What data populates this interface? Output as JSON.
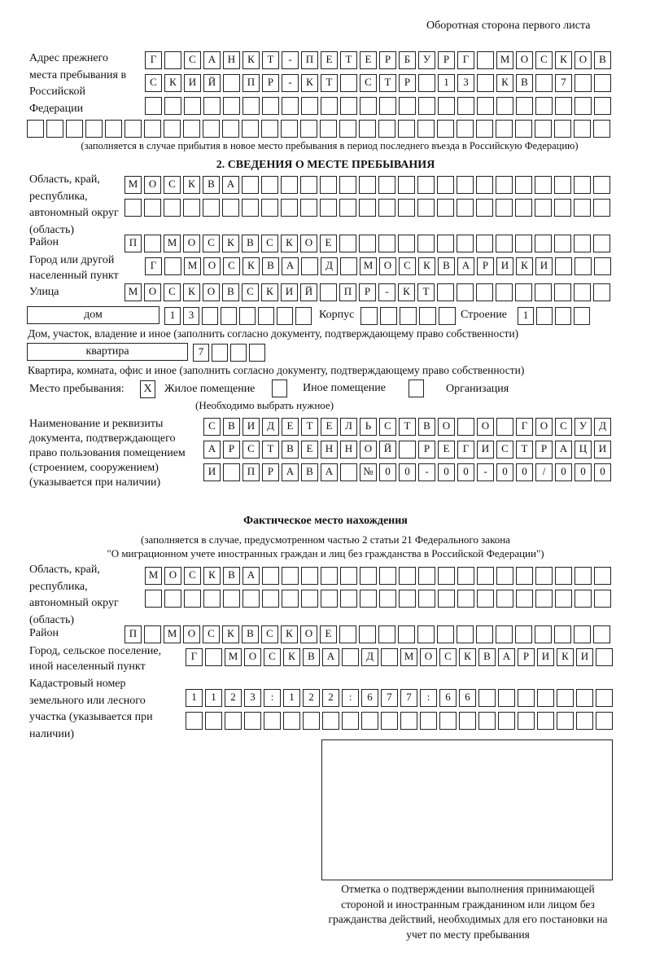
{
  "header": "Оборотная сторона первого листа",
  "prev_address": {
    "label": "Адрес прежнего места пребывания в Российской Федерации",
    "rows": [
      [
        "Г",
        "",
        "С",
        "А",
        "Н",
        "К",
        "Т",
        "-",
        "П",
        "Е",
        "Т",
        "Е",
        "Р",
        "Б",
        "У",
        "Р",
        "Г",
        "",
        "М",
        "О",
        "С",
        "К",
        "О",
        "В"
      ],
      [
        "С",
        "К",
        "И",
        "Й",
        "",
        "П",
        "Р",
        "-",
        "К",
        "Т",
        "",
        "С",
        "Т",
        "Р",
        "",
        "1",
        "3",
        "",
        "К",
        "В",
        "",
        "7",
        "",
        ""
      ],
      [
        "",
        "",
        "",
        "",
        "",
        "",
        "",
        "",
        "",
        "",
        "",
        "",
        "",
        "",
        "",
        "",
        "",
        "",
        "",
        "",
        "",
        "",
        "",
        ""
      ],
      [
        "",
        "",
        "",
        "",
        "",
        "",
        "",
        "",
        "",
        "",
        "",
        "",
        "",
        "",
        "",
        "",
        "",
        "",
        "",
        "",
        "",
        "",
        "",
        "",
        "",
        "",
        "",
        "",
        "",
        ""
      ]
    ],
    "note": "(заполняется в случае прибытия в новое место пребывания в период последнего въезда в Российскую Федерацию)"
  },
  "stay": {
    "section_title": "2. СВЕДЕНИЯ О МЕСТЕ ПРЕБЫВАНИЯ",
    "region": {
      "label": "Область, край, республика, автономный округ (область)",
      "rows": [
        [
          "М",
          "О",
          "С",
          "К",
          "В",
          "А",
          "",
          "",
          "",
          "",
          "",
          "",
          "",
          "",
          "",
          "",
          "",
          "",
          "",
          "",
          "",
          "",
          "",
          "",
          ""
        ],
        [
          "",
          "",
          "",
          "",
          "",
          "",
          "",
          "",
          "",
          "",
          "",
          "",
          "",
          "",
          "",
          "",
          "",
          "",
          "",
          "",
          "",
          "",
          "",
          "",
          ""
        ]
      ]
    },
    "district": {
      "label": "Район",
      "cells": [
        "П",
        "",
        "М",
        "О",
        "С",
        "К",
        "В",
        "С",
        "К",
        "О",
        "Е",
        "",
        "",
        "",
        "",
        "",
        "",
        "",
        "",
        "",
        "",
        "",
        "",
        "",
        ""
      ]
    },
    "city": {
      "label": "Город или другой населенный пункт",
      "cells": [
        "Г",
        "",
        "М",
        "О",
        "С",
        "К",
        "В",
        "А",
        "",
        "Д",
        "",
        "М",
        "О",
        "С",
        "К",
        "В",
        "А",
        "Р",
        "И",
        "К",
        "И",
        "",
        "",
        ""
      ]
    },
    "street": {
      "label": "Улица",
      "cells": [
        "М",
        "О",
        "С",
        "К",
        "О",
        "В",
        "С",
        "К",
        "И",
        "Й",
        "",
        "П",
        "Р",
        "-",
        "К",
        "Т",
        "",
        "",
        "",
        "",
        "",
        "",
        "",
        "",
        ""
      ]
    },
    "house": {
      "type_value": "дом",
      "number_cells": [
        "1",
        "3",
        "",
        "",
        "",
        "",
        "",
        ""
      ],
      "korpus_label": "Корпус",
      "korpus_cells": [
        "",
        "",
        "",
        "",
        ""
      ],
      "stroenie_label": "Строение",
      "stroenie_cells": [
        "1",
        "",
        "",
        ""
      ],
      "note": "Дом, участок, владение и иное (заполнить согласно документу, подтверждающему право собственности)"
    },
    "apartment": {
      "type_value": "квартира",
      "cells": [
        "7",
        "",
        "",
        ""
      ],
      "note": "Квартира, комната, офис и иное (заполнить согласно документу, подтверждающему право собственности)"
    },
    "place_type": {
      "label": "Место пребывания:",
      "options": [
        {
          "label": "Жилое помещение",
          "mark": "X"
        },
        {
          "label": "Иное помещение",
          "mark": ""
        },
        {
          "label": "Организация",
          "mark": ""
        }
      ],
      "hint": "(Необходимо выбрать нужное)"
    },
    "document": {
      "label": "Наименование и реквизиты документа, подтверждающего право пользования помещением (строением, сооружением) (указывается при наличии)",
      "rows": [
        [
          "С",
          "В",
          "И",
          "Д",
          "Е",
          "Т",
          "Е",
          "Л",
          "Ь",
          "С",
          "Т",
          "В",
          "О",
          "",
          "О",
          "",
          "Г",
          "О",
          "С",
          "У",
          "Д"
        ],
        [
          "А",
          "Р",
          "С",
          "Т",
          "В",
          "Е",
          "Н",
          "Н",
          "О",
          "Й",
          "",
          "Р",
          "Е",
          "Г",
          "И",
          "С",
          "Т",
          "Р",
          "А",
          "Ц",
          "И"
        ],
        [
          "И",
          "",
          "П",
          "Р",
          "А",
          "В",
          "А",
          "",
          "№",
          "0",
          "0",
          "-",
          "0",
          "0",
          "-",
          "0",
          "0",
          "/",
          "0",
          "0",
          "0"
        ]
      ]
    }
  },
  "actual": {
    "title": "Фактическое место нахождения",
    "note_line1": "(заполняется в случае, предусмотренном частью 2 статьи 21 Федерального закона",
    "note_line2": "\"О миграционном учете иностранных граждан и лиц без гражданства в Российской Федерации\")",
    "region": {
      "label": "Область, край, республика, автономный округ (область)",
      "rows": [
        [
          "М",
          "О",
          "С",
          "К",
          "В",
          "А",
          "",
          "",
          "",
          "",
          "",
          "",
          "",
          "",
          "",
          "",
          "",
          "",
          "",
          "",
          "",
          "",
          "",
          ""
        ],
        [
          "",
          "",
          "",
          "",
          "",
          "",
          "",
          "",
          "",
          "",
          "",
          "",
          "",
          "",
          "",
          "",
          "",
          "",
          "",
          "",
          "",
          "",
          "",
          ""
        ]
      ]
    },
    "district": {
      "label": "Район",
      "cells": [
        "П",
        "",
        "М",
        "О",
        "С",
        "К",
        "В",
        "С",
        "К",
        "О",
        "Е",
        "",
        "",
        "",
        "",
        "",
        "",
        "",
        "",
        "",
        "",
        "",
        "",
        "",
        ""
      ]
    },
    "city": {
      "label": "Город, сельское поселение, иной населенный пункт",
      "cells": [
        "Г",
        "",
        "М",
        "О",
        "С",
        "К",
        "В",
        "А",
        "",
        "Д",
        "",
        "М",
        "О",
        "С",
        "К",
        "В",
        "А",
        "Р",
        "И",
        "К",
        "И",
        ""
      ]
    },
    "cadastral": {
      "label": "Кадастровый номер земельного или лесного участка (указывается при наличии)",
      "rows": [
        [
          "1",
          "1",
          "2",
          "3",
          ":",
          "1",
          "2",
          "2",
          ":",
          "6",
          "7",
          "7",
          ":",
          "6",
          "6",
          "",
          "",
          "",
          "",
          "",
          "",
          ""
        ],
        [
          "",
          "",
          "",
          "",
          "",
          "",
          "",
          "",
          "",
          "",
          "",
          "",
          "",
          "",
          "",
          "",
          "",
          "",
          "",
          "",
          "",
          ""
        ]
      ]
    }
  },
  "confirmation_caption": "Отметка о подтверждении выполнения принимающей стороной и иностранным гражданином или лицом без гражданства действий, необходимых для его постановки на учет по месту пребывания"
}
